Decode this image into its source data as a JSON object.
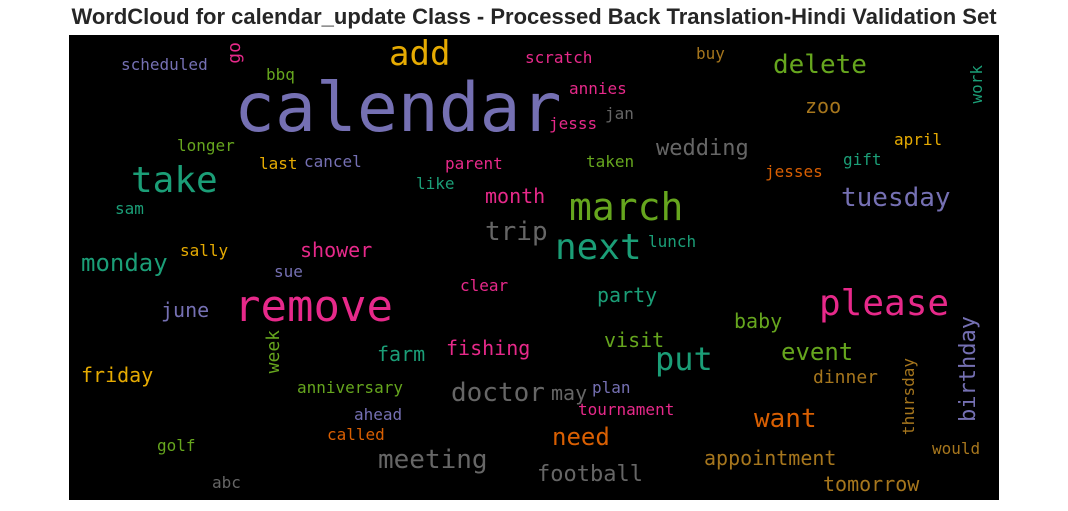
{
  "chart_data": {
    "type": "wordcloud",
    "title": "WordCloud for calendar_update Class - Processed Back Translation-Hindi Validation Set",
    "words": [
      {
        "text": "calendar",
        "color": "#7570b3"
      },
      {
        "text": "remove",
        "color": "#e7298a"
      },
      {
        "text": "march",
        "color": "#66a61e"
      },
      {
        "text": "take",
        "color": "#1b9e77"
      },
      {
        "text": "next",
        "color": "#1b9e77"
      },
      {
        "text": "please",
        "color": "#e7298a"
      },
      {
        "text": "add",
        "color": "#e6ab02"
      },
      {
        "text": "put",
        "color": "#1b9e77"
      },
      {
        "text": "delete",
        "color": "#66a61e"
      },
      {
        "text": "tuesday",
        "color": "#7570b3"
      },
      {
        "text": "trip",
        "color": "#666666"
      },
      {
        "text": "monday",
        "color": "#1b9e77"
      },
      {
        "text": "doctor",
        "color": "#666666"
      },
      {
        "text": "meeting",
        "color": "#666666"
      },
      {
        "text": "want",
        "color": "#d95f02"
      },
      {
        "text": "wedding",
        "color": "#666666"
      },
      {
        "text": "event",
        "color": "#66a61e"
      },
      {
        "text": "need",
        "color": "#d95f02"
      },
      {
        "text": "month",
        "color": "#e7298a"
      },
      {
        "text": "shower",
        "color": "#e7298a"
      },
      {
        "text": "fishing",
        "color": "#e7298a"
      },
      {
        "text": "football",
        "color": "#666666"
      },
      {
        "text": "appointment",
        "color": "#a6761d"
      },
      {
        "text": "birthday",
        "color": "#7570b3"
      },
      {
        "text": "zoo",
        "color": "#a6761d"
      },
      {
        "text": "party",
        "color": "#1b9e77"
      },
      {
        "text": "baby",
        "color": "#66a61e"
      },
      {
        "text": "friday",
        "color": "#e6ab02"
      },
      {
        "text": "farm",
        "color": "#1b9e77"
      },
      {
        "text": "visit",
        "color": "#66a61e"
      },
      {
        "text": "june",
        "color": "#7570b3"
      },
      {
        "text": "dinner",
        "color": "#a6761d"
      },
      {
        "text": "tomorrow",
        "color": "#a6761d"
      },
      {
        "text": "week",
        "color": "#66a61e"
      },
      {
        "text": "may",
        "color": "#666666"
      },
      {
        "text": "scheduled",
        "color": "#7570b3"
      },
      {
        "text": "go",
        "color": "#e7298a"
      },
      {
        "text": "scratch",
        "color": "#e7298a"
      },
      {
        "text": "buy",
        "color": "#a6761d"
      },
      {
        "text": "bbq",
        "color": "#66a61e"
      },
      {
        "text": "annies",
        "color": "#e7298a"
      },
      {
        "text": "jan",
        "color": "#666666"
      },
      {
        "text": "jesss",
        "color": "#e7298a"
      },
      {
        "text": "work",
        "color": "#1b9e77"
      },
      {
        "text": "april",
        "color": "#e6ab02"
      },
      {
        "text": "longer",
        "color": "#66a61e"
      },
      {
        "text": "last",
        "color": "#e6ab02"
      },
      {
        "text": "cancel",
        "color": "#7570b3"
      },
      {
        "text": "parent",
        "color": "#e7298a"
      },
      {
        "text": "taken",
        "color": "#66a61e"
      },
      {
        "text": "gift",
        "color": "#1b9e77"
      },
      {
        "text": "jesses",
        "color": "#d95f02"
      },
      {
        "text": "like",
        "color": "#1b9e77"
      },
      {
        "text": "sam",
        "color": "#1b9e77"
      },
      {
        "text": "lunch",
        "color": "#1b9e77"
      },
      {
        "text": "sally",
        "color": "#e6ab02"
      },
      {
        "text": "sue",
        "color": "#7570b3"
      },
      {
        "text": "clear",
        "color": "#e7298a"
      },
      {
        "text": "anniversary",
        "color": "#66a61e"
      },
      {
        "text": "plan",
        "color": "#7570b3"
      },
      {
        "text": "ahead",
        "color": "#7570b3"
      },
      {
        "text": "tournament",
        "color": "#e7298a"
      },
      {
        "text": "thursday",
        "color": "#a6761d"
      },
      {
        "text": "called",
        "color": "#d95f02"
      },
      {
        "text": "golf",
        "color": "#66a61e"
      },
      {
        "text": "would",
        "color": "#a6761d"
      },
      {
        "text": "abc",
        "color": "#666666"
      }
    ]
  }
}
